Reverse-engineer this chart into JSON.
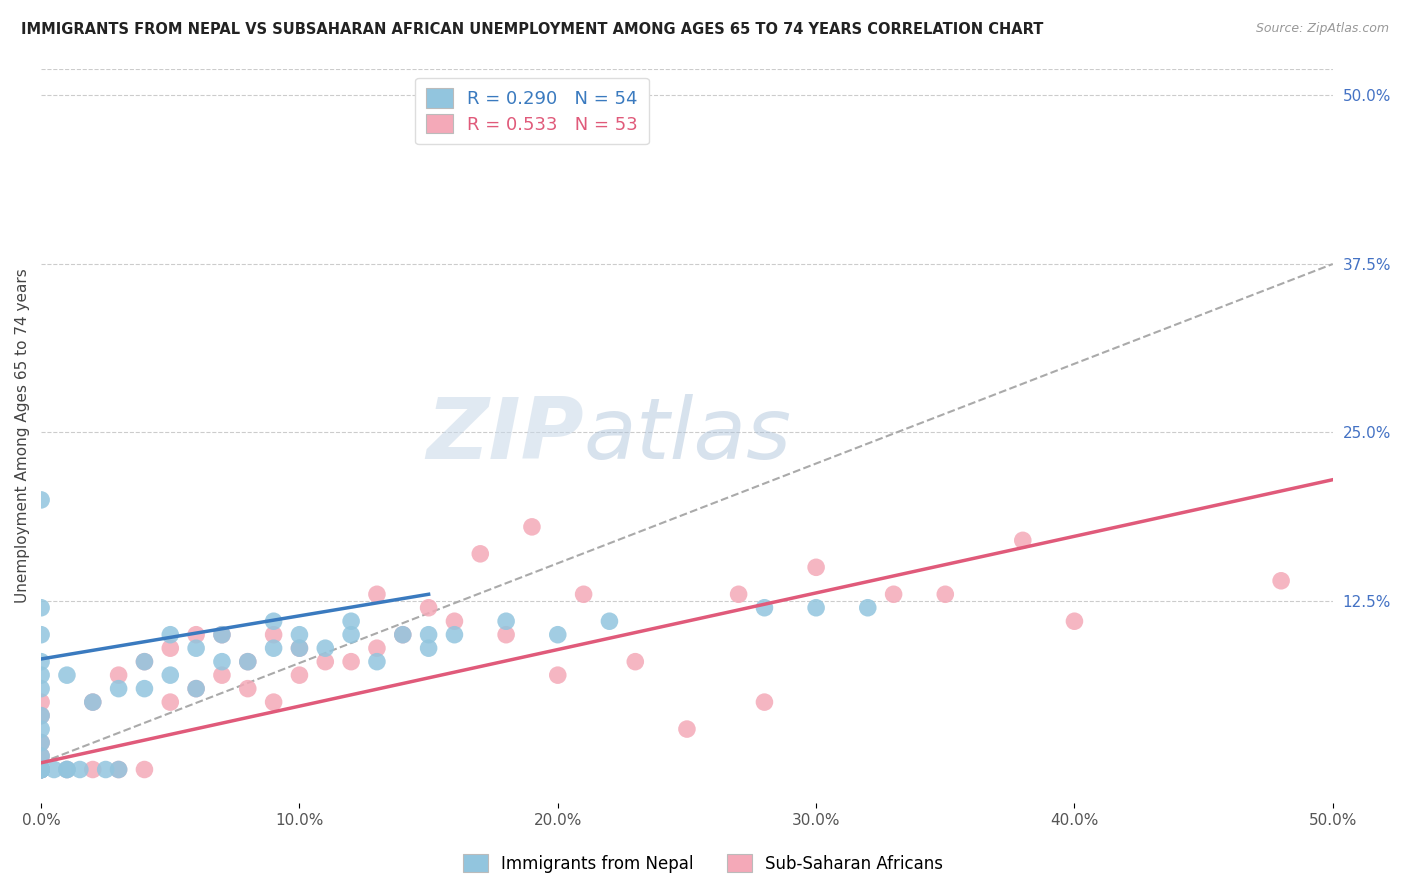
{
  "title": "IMMIGRANTS FROM NEPAL VS SUBSAHARAN AFRICAN UNEMPLOYMENT AMONG AGES 65 TO 74 YEARS CORRELATION CHART",
  "source": "Source: ZipAtlas.com",
  "ylabel": "Unemployment Among Ages 65 to 74 years",
  "xlim": [
    0,
    0.5
  ],
  "ylim": [
    -0.025,
    0.52
  ],
  "xticks": [
    0.0,
    0.1,
    0.2,
    0.3,
    0.4,
    0.5
  ],
  "ytick_labels_right": [
    "50.0%",
    "37.5%",
    "25.0%",
    "12.5%"
  ],
  "ytick_values_right": [
    0.5,
    0.375,
    0.25,
    0.125
  ],
  "nepal_color": "#92c5de",
  "nepal_color_line": "#3a7abf",
  "subsaharan_color": "#f4a9b8",
  "subsaharan_color_line": "#e05a7a",
  "R_nepal": 0.29,
  "N_nepal": 54,
  "R_subsaharan": 0.533,
  "N_subsaharan": 53,
  "nepal_line_x": [
    0.0,
    0.15
  ],
  "nepal_line_y": [
    0.082,
    0.13
  ],
  "subsaharan_line_x": [
    0.0,
    0.5
  ],
  "subsaharan_line_y": [
    0.005,
    0.215
  ],
  "dash_line_x": [
    0.0,
    0.5
  ],
  "dash_line_y": [
    0.005,
    0.375
  ],
  "nepal_x": [
    0.0,
    0.0,
    0.0,
    0.0,
    0.0,
    0.0,
    0.0,
    0.0,
    0.0,
    0.0,
    0.0,
    0.0,
    0.0,
    0.0,
    0.0,
    0.0,
    0.0,
    0.0,
    0.005,
    0.01,
    0.01,
    0.01,
    0.015,
    0.02,
    0.025,
    0.03,
    0.03,
    0.04,
    0.04,
    0.05,
    0.05,
    0.06,
    0.06,
    0.07,
    0.07,
    0.08,
    0.09,
    0.09,
    0.1,
    0.1,
    0.11,
    0.12,
    0.12,
    0.13,
    0.14,
    0.15,
    0.15,
    0.16,
    0.18,
    0.2,
    0.22,
    0.28,
    0.3,
    0.32
  ],
  "nepal_y": [
    0.0,
    0.0,
    0.0,
    0.0,
    0.0,
    0.0,
    0.0,
    0.0,
    0.01,
    0.02,
    0.03,
    0.04,
    0.06,
    0.07,
    0.08,
    0.1,
    0.12,
    0.2,
    0.0,
    0.0,
    0.0,
    0.07,
    0.0,
    0.05,
    0.0,
    0.0,
    0.06,
    0.06,
    0.08,
    0.07,
    0.1,
    0.06,
    0.09,
    0.08,
    0.1,
    0.08,
    0.09,
    0.11,
    0.09,
    0.1,
    0.09,
    0.1,
    0.11,
    0.08,
    0.1,
    0.09,
    0.1,
    0.1,
    0.11,
    0.1,
    0.11,
    0.12,
    0.12,
    0.12
  ],
  "subsaharan_x": [
    0.0,
    0.0,
    0.0,
    0.0,
    0.0,
    0.0,
    0.0,
    0.0,
    0.0,
    0.0,
    0.0,
    0.0,
    0.01,
    0.02,
    0.02,
    0.03,
    0.03,
    0.04,
    0.04,
    0.05,
    0.05,
    0.06,
    0.06,
    0.07,
    0.07,
    0.08,
    0.08,
    0.09,
    0.09,
    0.1,
    0.1,
    0.11,
    0.12,
    0.13,
    0.13,
    0.14,
    0.15,
    0.16,
    0.17,
    0.18,
    0.19,
    0.2,
    0.21,
    0.23,
    0.25,
    0.27,
    0.28,
    0.3,
    0.33,
    0.35,
    0.38,
    0.4,
    0.48
  ],
  "subsaharan_y": [
    0.0,
    0.0,
    0.0,
    0.0,
    0.0,
    0.0,
    0.0,
    0.0,
    0.01,
    0.02,
    0.04,
    0.05,
    0.0,
    0.0,
    0.05,
    0.0,
    0.07,
    0.0,
    0.08,
    0.05,
    0.09,
    0.06,
    0.1,
    0.07,
    0.1,
    0.06,
    0.08,
    0.05,
    0.1,
    0.07,
    0.09,
    0.08,
    0.08,
    0.09,
    0.13,
    0.1,
    0.12,
    0.11,
    0.16,
    0.1,
    0.18,
    0.07,
    0.13,
    0.08,
    0.03,
    0.13,
    0.05,
    0.15,
    0.13,
    0.13,
    0.17,
    0.11,
    0.14
  ]
}
